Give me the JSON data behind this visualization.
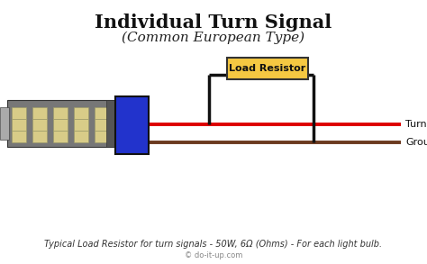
{
  "title": "Individual Turn Signal",
  "subtitle": "(Common European Type)",
  "footer": "Typical Load Resistor for turn signals - 50W, 6Ω (Ohms) - For each light bulb.",
  "copyright": "© do-it-up.com",
  "background_color": "#ffffff",
  "label_turn_signal": "Turn Signal",
  "label_ground": "Ground",
  "label_load_resistor": "Load Resistor",
  "wire_red_color": "#dd0000",
  "wire_brown_color": "#6b3a1f",
  "wire_black_color": "#111111",
  "resistor_box_fill": "#f5c842",
  "resistor_box_edge": "#333333",
  "led_box_color": "#2233cc",
  "led_box_edge": "#111111",
  "bulb_body_color": "#888888",
  "bulb_dark": "#555555",
  "led_color": "#d8cc88",
  "title_fontsize": 15,
  "subtitle_fontsize": 11,
  "footer_fontsize": 7,
  "label_fontsize": 8,
  "resistor_label_fontsize": 8
}
